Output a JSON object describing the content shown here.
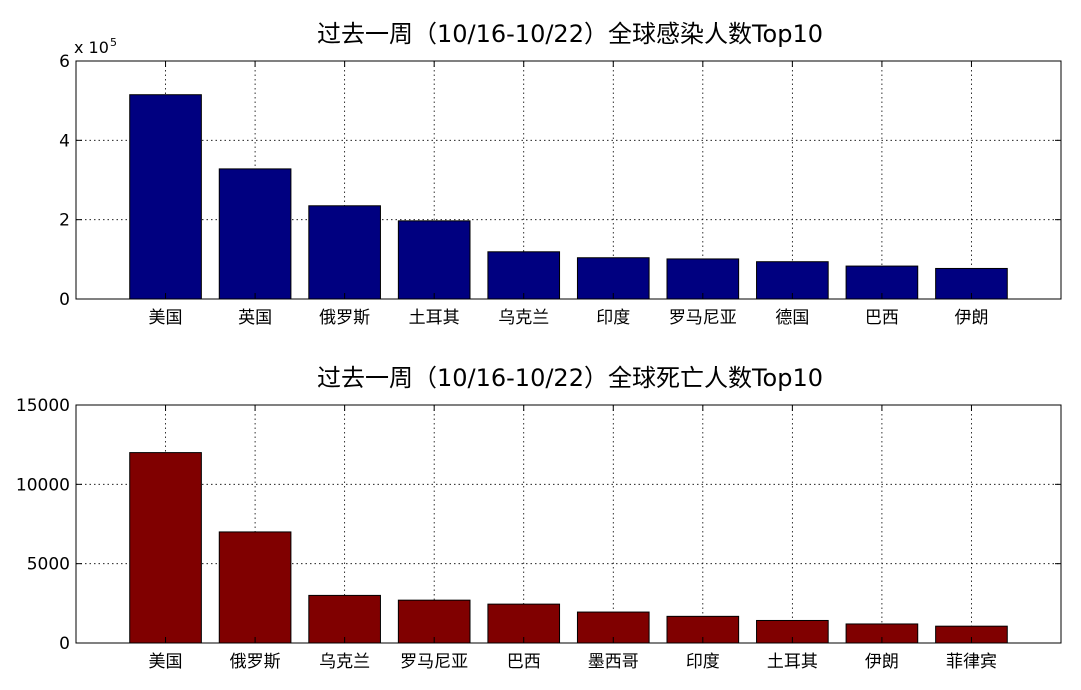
{
  "chart_data": [
    {
      "type": "bar",
      "title": "过去一周（10/16-10/22）全球感染人数Top10",
      "xlabel": "",
      "ylabel": "",
      "y_multiplier": {
        "base": "x 10",
        "exponent": "5"
      },
      "ylim": [
        0,
        6
      ],
      "yticks": [
        "0",
        "2",
        "4",
        "6"
      ],
      "categories": [
        "美国",
        "英国",
        "俄罗斯",
        "土耳其",
        "乌克兰",
        "印度",
        "罗马尼亚",
        "德国",
        "巴西",
        "伊朗"
      ],
      "values": [
        5.15,
        3.28,
        2.35,
        1.97,
        1.19,
        1.04,
        1.01,
        0.94,
        0.83,
        0.77
      ],
      "color": "#000080",
      "grid": true
    },
    {
      "type": "bar",
      "title": "过去一周（10/16-10/22）全球死亡人数Top10",
      "xlabel": "",
      "ylabel": "",
      "ylim": [
        0,
        15000
      ],
      "yticks": [
        "0",
        "5000",
        "10000",
        "15000"
      ],
      "categories": [
        "美国",
        "俄罗斯",
        "乌克兰",
        "罗马尼亚",
        "巴西",
        "墨西哥",
        "印度",
        "土耳其",
        "伊朗",
        "菲律宾"
      ],
      "values": [
        12000,
        7000,
        3000,
        2700,
        2450,
        1950,
        1680,
        1420,
        1200,
        1060
      ],
      "color": "#800000",
      "grid": true
    }
  ]
}
